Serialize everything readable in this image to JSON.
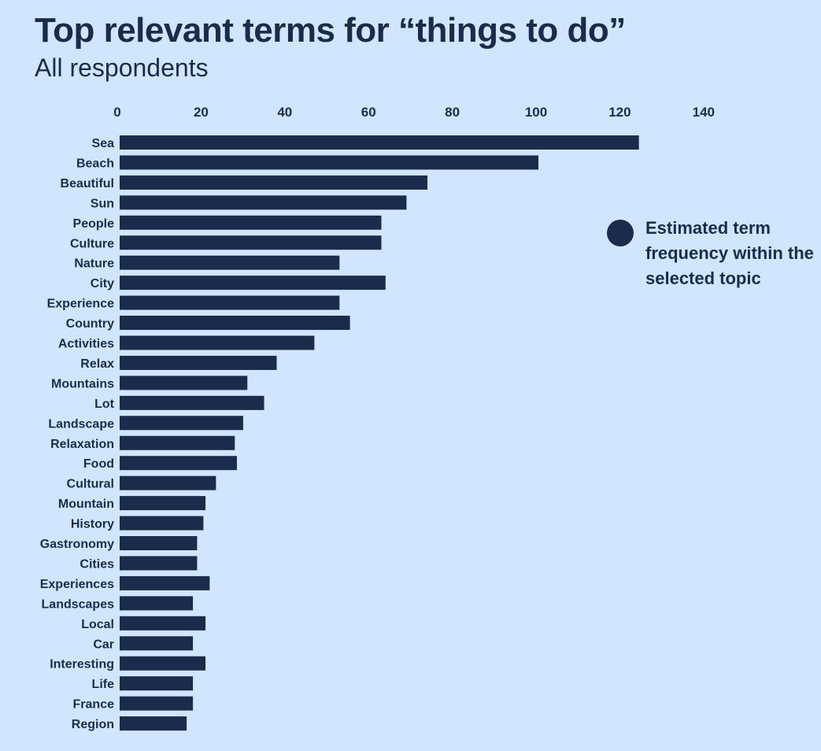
{
  "chart_data": {
    "type": "bar",
    "orientation": "horizontal",
    "title": "Top relevant terms for “things to do”",
    "subtitle": "All respondents",
    "xlim": [
      0,
      150
    ],
    "xticks": [
      0,
      20,
      40,
      60,
      80,
      100,
      120,
      140
    ],
    "x_axis_position": "top",
    "grid": false,
    "legend_position": "right",
    "categories": [
      "Sea",
      "Beach",
      "Beautiful",
      "Sun",
      "People",
      "Culture",
      "Nature",
      "City",
      "Experience",
      "Country",
      "Activities",
      "Relax",
      "Mountains",
      "Lot",
      "Landscape",
      "Relaxation",
      "Food",
      "Cultural",
      "Mountain",
      "History",
      "Gastronomy",
      "Cities",
      "Experiences",
      "Landscapes",
      "Local",
      "Car",
      "Interesting",
      "Life",
      "France",
      "Region"
    ],
    "series": [
      {
        "name": "Estimated term frequency within the selected topic",
        "color": "#1b2b4b",
        "values": [
          124,
          100,
          73.5,
          68.5,
          62.5,
          62.5,
          52.5,
          63.5,
          52.5,
          55,
          46.5,
          37.5,
          30.5,
          34.5,
          29.5,
          27.5,
          28,
          23,
          20.5,
          20,
          18.5,
          18.5,
          21.5,
          17.5,
          20.5,
          17.5,
          20.5,
          17.5,
          17.5,
          16
        ]
      }
    ]
  },
  "colors": {
    "background": "#d1e6fe",
    "bar": "#1b2b4b",
    "text": "#1b2b4b"
  }
}
